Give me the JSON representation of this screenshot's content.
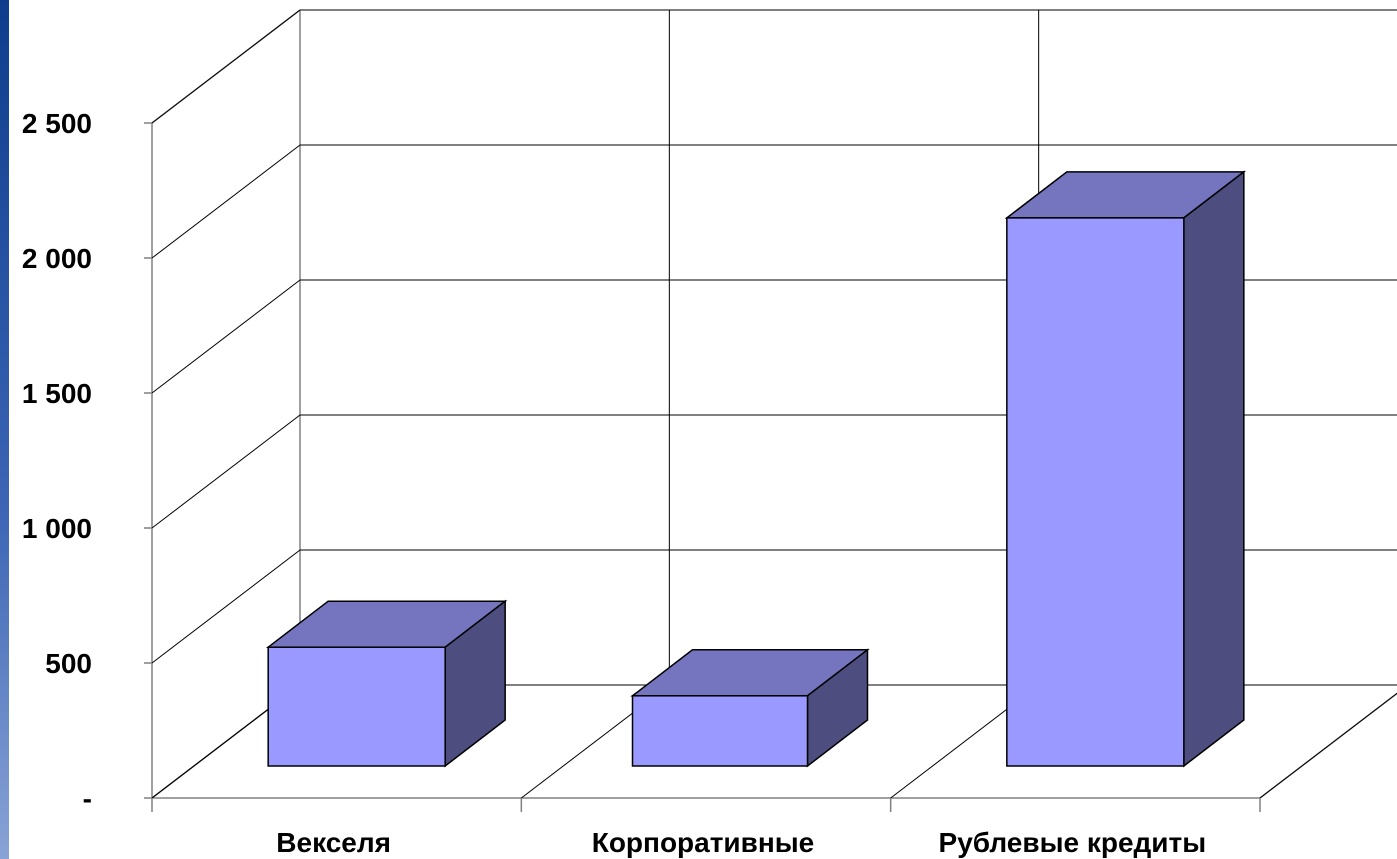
{
  "chart_data": {
    "type": "bar",
    "style": "3d-column",
    "categories": [
      "Векселя",
      "Корпоративные",
      "Рублевые кредиты"
    ],
    "values": [
      440,
      260,
      2030
    ],
    "y_tick_labels": [
      "-",
      "500",
      "1 000",
      "1 500",
      "2 000",
      "2 500"
    ],
    "ylim": [
      0,
      2500
    ],
    "grid": true,
    "legend": "none",
    "title": "",
    "xlabel": "",
    "ylabel": ""
  },
  "colors": {
    "bar_front": "#9999ff",
    "bar_top": "#7575bf",
    "bar_side": "#4d4d80",
    "grid": "#000000",
    "axis": "#808080",
    "left_strip": "#1f4f9e"
  }
}
